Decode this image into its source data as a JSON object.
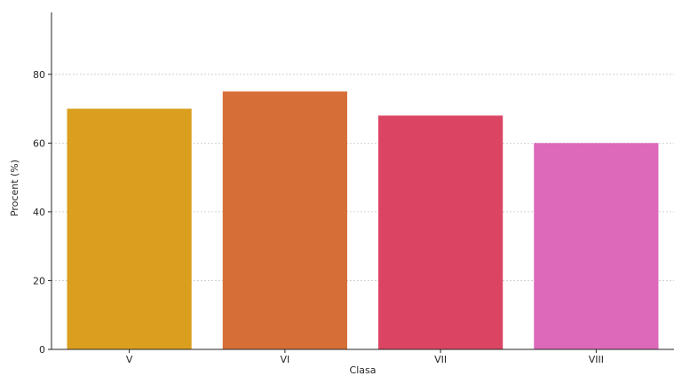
{
  "chart_data": {
    "type": "bar",
    "title": "",
    "xlabel": "Clasa",
    "ylabel": "Procent (%)",
    "categories": [
      "V",
      "VI",
      "VII",
      "VIII"
    ],
    "values": [
      70,
      75,
      68,
      60
    ],
    "colors": [
      "#DA9F1F",
      "#D66E38",
      "#DB4563",
      "#DD69BA"
    ],
    "ylim": [
      0,
      98
    ],
    "yticks": [
      0,
      20,
      40,
      60,
      80
    ],
    "grid": "horizontal dashed",
    "legend": "none"
  }
}
